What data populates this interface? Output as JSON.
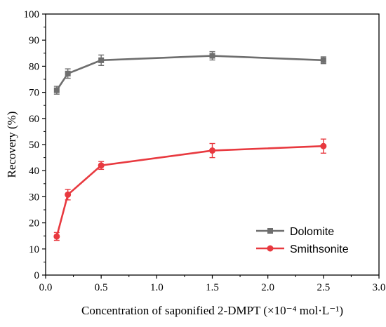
{
  "chart_data": {
    "type": "line",
    "xlabel": "Concentration of saponified 2-DMPT (×10⁻⁴ mol·L⁻¹)",
    "ylabel": "Recovery (%)",
    "xlim": [
      0.0,
      3.0
    ],
    "ylim": [
      0,
      100
    ],
    "xticks": [
      "0.0",
      "0.5",
      "1.0",
      "1.5",
      "2.0",
      "2.5",
      "3.0"
    ],
    "yticks": [
      "0",
      "10",
      "20",
      "30",
      "40",
      "50",
      "60",
      "70",
      "80",
      "90",
      "100"
    ],
    "grid": false,
    "legend_position": "bottom-right",
    "series": [
      {
        "name": "Dolomite",
        "color": "#6e6e6e",
        "marker": "square",
        "x": [
          0.1,
          0.2,
          0.5,
          1.5,
          2.5
        ],
        "y": [
          70.8,
          77.2,
          82.3,
          84.0,
          82.3
        ],
        "error": [
          1.5,
          1.8,
          2.0,
          1.6,
          1.3
        ]
      },
      {
        "name": "Smithsonite",
        "color": "#e8393f",
        "marker": "circle",
        "x": [
          0.1,
          0.2,
          0.5,
          1.5,
          2.5
        ],
        "y": [
          14.8,
          30.8,
          42.0,
          47.7,
          49.4
        ],
        "error": [
          1.5,
          2.0,
          1.5,
          2.7,
          2.7
        ]
      }
    ]
  }
}
